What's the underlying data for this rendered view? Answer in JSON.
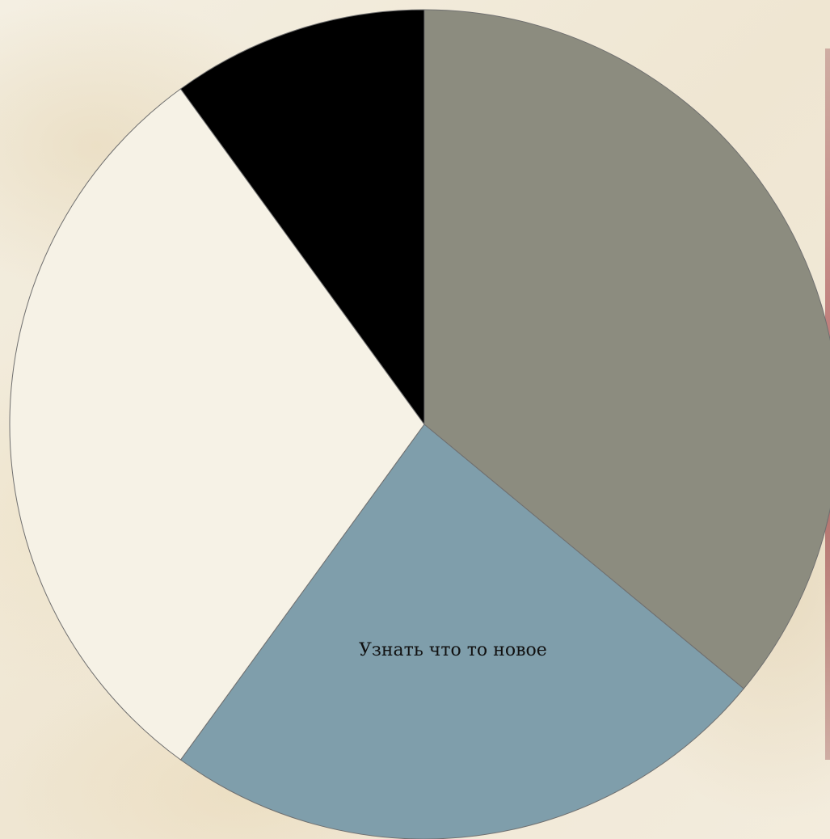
{
  "chart_data": {
    "type": "pie",
    "title": "",
    "slices": [
      {
        "label": "",
        "value": 36,
        "color": "#8c8c7f"
      },
      {
        "label": "Узнать что то новое",
        "value": 24,
        "color": "#7f9eab"
      },
      {
        "label": "",
        "value": 30,
        "color": "#f6f2e6"
      },
      {
        "label": "",
        "value": 10,
        "color": "#000000"
      }
    ],
    "start_angle_deg": 0,
    "direction": "clockwise",
    "legend": "none"
  }
}
